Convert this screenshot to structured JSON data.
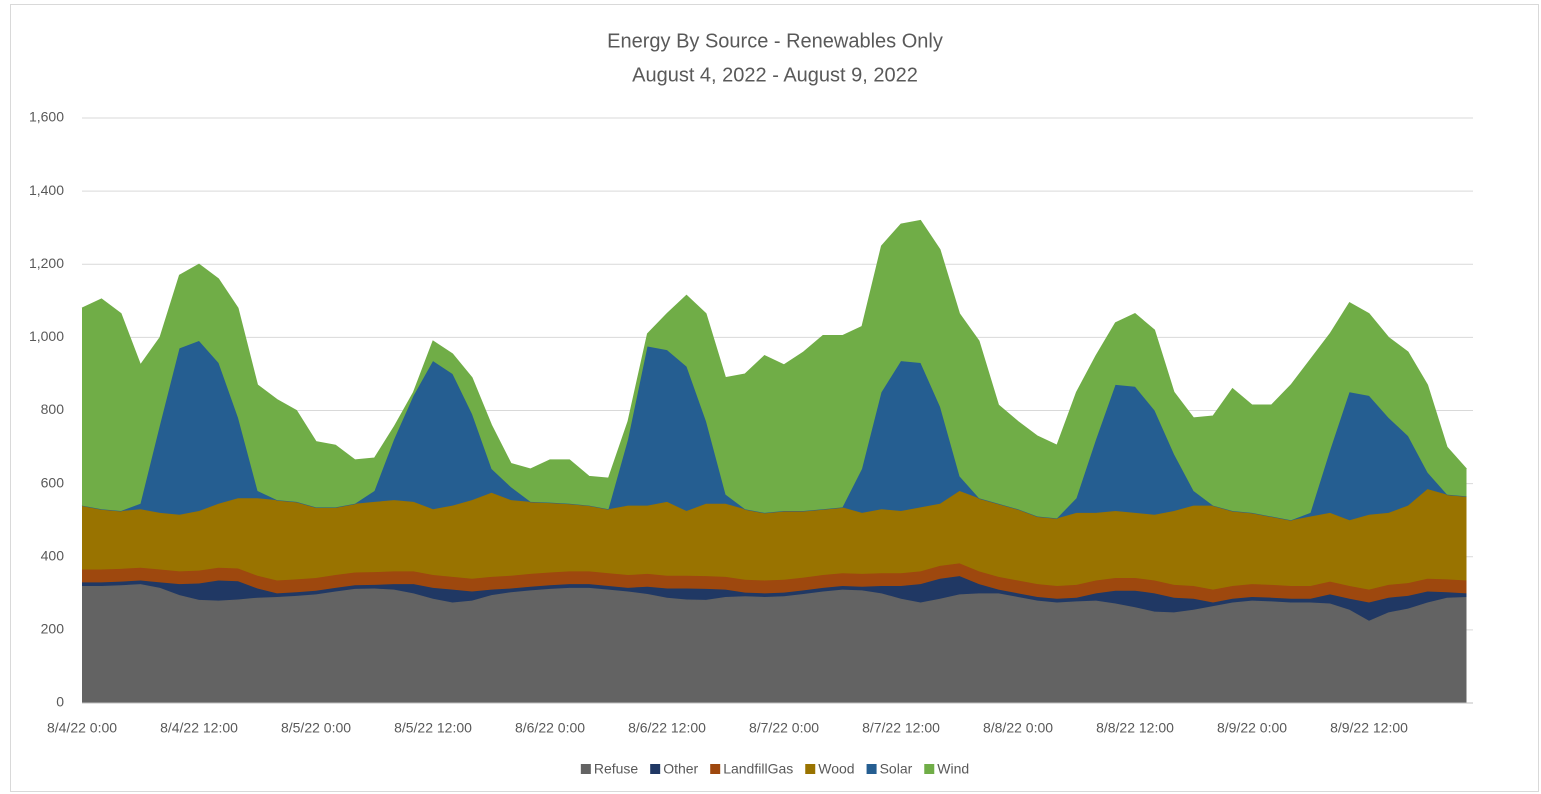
{
  "chart_data": {
    "type": "area",
    "stacked": true,
    "title": "Energy By Source - Renewables Only",
    "subtitle": "August 4, 2022 - August 9, 2022",
    "categories": [
      "8/4/22 0:00",
      null,
      null,
      null,
      null,
      null,
      "8/4/22 12:00",
      null,
      null,
      null,
      null,
      null,
      "8/5/22 0:00",
      null,
      null,
      null,
      null,
      null,
      "8/5/22 12:00",
      null,
      null,
      null,
      null,
      null,
      "8/6/22 0:00",
      null,
      null,
      null,
      null,
      null,
      "8/6/22 12:00",
      null,
      null,
      null,
      null,
      null,
      "8/7/22 0:00",
      null,
      null,
      null,
      null,
      null,
      "8/7/22 12:00",
      null,
      null,
      null,
      null,
      null,
      "8/8/22 0:00",
      null,
      null,
      null,
      null,
      null,
      "8/8/22 12:00",
      null,
      null,
      null,
      null,
      null,
      "8/9/22 0:00",
      null,
      null,
      null,
      null,
      null,
      "8/9/22 12:00",
      null,
      null,
      null,
      null,
      null
    ],
    "series": [
      {
        "name": "Refuse",
        "color": "#636363",
        "values": [
          320,
          320,
          322,
          325,
          315,
          295,
          282,
          280,
          283,
          288,
          290,
          293,
          297,
          305,
          312,
          313,
          310,
          300,
          285,
          275,
          280,
          295,
          303,
          308,
          312,
          315,
          315,
          310,
          305,
          298,
          288,
          283,
          282,
          290,
          292,
          290,
          292,
          298,
          305,
          310,
          308,
          300,
          285,
          275,
          285,
          297,
          300,
          300,
          290,
          280,
          275,
          278,
          280,
          272,
          262,
          250,
          248,
          255,
          265,
          275,
          280,
          278,
          275,
          275,
          272,
          255,
          225,
          248,
          258,
          275,
          288,
          290
        ]
      },
      {
        "name": "Other",
        "color": "#203864",
        "values": [
          10,
          10,
          10,
          10,
          15,
          30,
          45,
          55,
          50,
          25,
          10,
          10,
          10,
          10,
          10,
          10,
          15,
          25,
          30,
          35,
          25,
          15,
          10,
          10,
          10,
          10,
          10,
          10,
          10,
          20,
          25,
          30,
          30,
          20,
          10,
          10,
          10,
          10,
          10,
          10,
          10,
          20,
          35,
          50,
          55,
          50,
          25,
          10,
          10,
          10,
          10,
          10,
          20,
          35,
          45,
          50,
          40,
          30,
          10,
          10,
          10,
          10,
          10,
          10,
          25,
          30,
          50,
          40,
          35,
          30,
          15,
          10
        ]
      },
      {
        "name": "LandfillGas",
        "color": "#9e480e",
        "values": [
          35,
          35,
          35,
          35,
          35,
          35,
          35,
          35,
          35,
          35,
          35,
          35,
          35,
          35,
          35,
          35,
          35,
          35,
          35,
          35,
          35,
          35,
          35,
          35,
          35,
          35,
          35,
          35,
          35,
          35,
          35,
          35,
          35,
          35,
          35,
          35,
          35,
          35,
          35,
          35,
          35,
          35,
          35,
          35,
          35,
          35,
          35,
          35,
          35,
          35,
          35,
          35,
          35,
          35,
          35,
          35,
          35,
          35,
          35,
          35,
          35,
          35,
          35,
          35,
          35,
          35,
          35,
          35,
          35,
          35,
          35,
          35
        ]
      },
      {
        "name": "Wood",
        "color": "#997300",
        "values": [
          175,
          165,
          158,
          160,
          155,
          155,
          163,
          175,
          192,
          212,
          220,
          212,
          193,
          185,
          188,
          192,
          195,
          190,
          180,
          195,
          215,
          230,
          207,
          197,
          191,
          185,
          180,
          175,
          190,
          187,
          202,
          177,
          198,
          200,
          193,
          185,
          188,
          182,
          180,
          180,
          167,
          175,
          170,
          175,
          170,
          198,
          200,
          200,
          195,
          185,
          185,
          197,
          185,
          183,
          178,
          180,
          202,
          220,
          230,
          205,
          195,
          187,
          180,
          190,
          188,
          180,
          205,
          197,
          212,
          245,
          232,
          230
        ]
      },
      {
        "name": "Solar",
        "color": "#255e91",
        "values": [
          0,
          0,
          0,
          15,
          240,
          455,
          465,
          385,
          220,
          20,
          0,
          0,
          0,
          0,
          0,
          30,
          165,
          290,
          405,
          360,
          235,
          65,
          35,
          0,
          0,
          0,
          0,
          0,
          180,
          435,
          415,
          395,
          225,
          25,
          0,
          0,
          0,
          0,
          0,
          0,
          120,
          320,
          410,
          395,
          265,
          40,
          0,
          0,
          0,
          0,
          0,
          40,
          200,
          345,
          345,
          285,
          155,
          40,
          0,
          0,
          0,
          0,
          0,
          10,
          170,
          350,
          325,
          260,
          190,
          45,
          0,
          0
        ]
      },
      {
        "name": "Wind",
        "color": "#70ad47",
        "values": [
          540,
          575,
          540,
          380,
          240,
          200,
          210,
          230,
          300,
          290,
          275,
          250,
          180,
          170,
          120,
          90,
          35,
          10,
          55,
          55,
          100,
          120,
          65,
          90,
          117,
          120,
          80,
          85,
          50,
          35,
          100,
          195,
          295,
          320,
          370,
          430,
          400,
          435,
          475,
          470,
          390,
          400,
          375,
          390,
          430,
          445,
          430,
          270,
          240,
          220,
          200,
          290,
          230,
          170,
          200,
          220,
          170,
          200,
          245,
          335,
          295,
          305,
          370,
          420,
          320,
          245,
          225,
          220,
          230,
          240,
          130,
          75
        ]
      }
    ],
    "ylim": [
      0,
      1600
    ],
    "yticks": [
      0,
      200,
      400,
      600,
      800,
      {
        "value": 1000,
        "label": "1,000"
      },
      {
        "value": 1200,
        "label": "1,200"
      },
      {
        "value": 1400,
        "label": "1,400"
      },
      {
        "value": 1600,
        "label": "1,600"
      }
    ],
    "grid": true,
    "legend": "bottom"
  }
}
